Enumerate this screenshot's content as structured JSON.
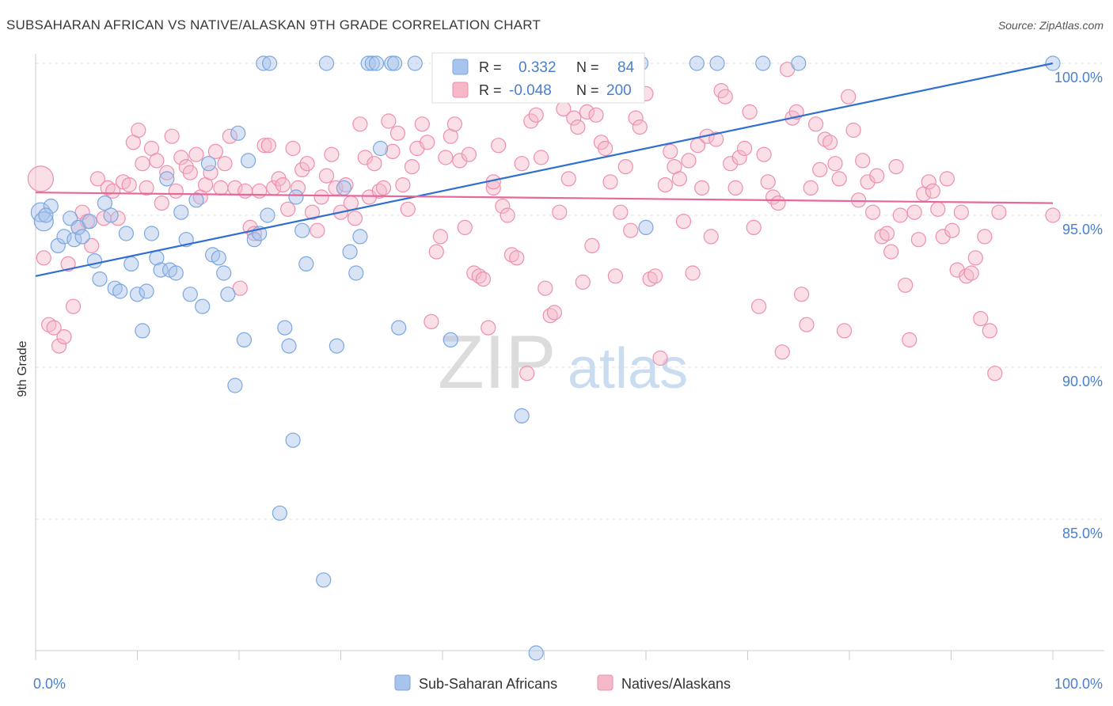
{
  "header": {
    "title": "SUBSAHARAN AFRICAN VS NATIVE/ALASKAN 9TH GRADE CORRELATION CHART",
    "source": "Source: ZipAtlas.com"
  },
  "watermark": {
    "part1": "ZIP",
    "part2": "atlas"
  },
  "legend_box": {
    "rows": [
      {
        "r_label": "R =",
        "r_value": "0.332",
        "n_label": "N =",
        "n_value": "84",
        "color": "#a8c4ec"
      },
      {
        "r_label": "R =",
        "r_value": "-0.048",
        "n_label": "N =",
        "n_value": "200",
        "color": "#f5b8c9"
      }
    ]
  },
  "chart_data": {
    "type": "scatter",
    "title": "SUBSAHARAN AFRICAN VS NATIVE/ALASKAN 9TH GRADE CORRELATION CHART",
    "xlabel": "",
    "ylabel": "9th Grade",
    "xlim": [
      0,
      100
    ],
    "ylim": [
      80.5,
      101.0
    ],
    "x_tick_labels": [
      "0.0%",
      "100.0%"
    ],
    "y_ticks": [
      {
        "value": 100.0,
        "label": "100.0%"
      },
      {
        "value": 95.0,
        "label": "95.0%"
      },
      {
        "value": 90.0,
        "label": "90.0%"
      },
      {
        "value": 85.0,
        "label": "85.0%"
      }
    ],
    "grid": true,
    "legend_position": "bottom-center",
    "series": [
      {
        "name": "Sub-Saharan Africans",
        "color": "#7aa7e0",
        "fill": "#a8c4ec",
        "R": 0.332,
        "N": 84,
        "trend": {
          "x": [
            0,
            100
          ],
          "y": [
            93.0,
            100.0
          ]
        },
        "points": [
          [
            0.5,
            95.1
          ],
          [
            0.8,
            94.8
          ],
          [
            1.5,
            95.3
          ],
          [
            2.2,
            94.0
          ],
          [
            2.8,
            94.3
          ],
          [
            3.4,
            94.9
          ],
          [
            3.8,
            94.2
          ],
          [
            4.2,
            94.6
          ],
          [
            4.6,
            94.3
          ],
          [
            5.3,
            94.8
          ],
          [
            5.8,
            93.5
          ],
          [
            6.3,
            92.9
          ],
          [
            6.8,
            95.4
          ],
          [
            7.4,
            95.0
          ],
          [
            7.8,
            92.6
          ],
          [
            8.3,
            92.5
          ],
          [
            8.9,
            94.4
          ],
          [
            9.4,
            93.4
          ],
          [
            10.0,
            92.4
          ],
          [
            10.5,
            91.2
          ],
          [
            10.9,
            92.5
          ],
          [
            11.4,
            94.4
          ],
          [
            11.9,
            93.6
          ],
          [
            12.3,
            93.2
          ],
          [
            12.9,
            96.2
          ],
          [
            13.2,
            93.2
          ],
          [
            13.8,
            93.1
          ],
          [
            14.3,
            95.1
          ],
          [
            14.8,
            94.2
          ],
          [
            15.2,
            92.4
          ],
          [
            15.8,
            95.5
          ],
          [
            16.4,
            92.0
          ],
          [
            17.0,
            96.7
          ],
          [
            17.4,
            93.7
          ],
          [
            18.0,
            93.6
          ],
          [
            18.5,
            93.1
          ],
          [
            18.9,
            92.4
          ],
          [
            19.6,
            89.4
          ],
          [
            19.9,
            97.7
          ],
          [
            20.5,
            90.9
          ],
          [
            20.9,
            96.8
          ],
          [
            21.5,
            94.2
          ],
          [
            22.0,
            94.4
          ],
          [
            22.4,
            100.0
          ],
          [
            22.8,
            95.0
          ],
          [
            23.0,
            100.0
          ],
          [
            24.0,
            85.2
          ],
          [
            24.5,
            91.3
          ],
          [
            24.9,
            90.7
          ],
          [
            25.3,
            87.6
          ],
          [
            25.6,
            95.6
          ],
          [
            26.2,
            94.5
          ],
          [
            26.6,
            93.4
          ],
          [
            28.3,
            83.0
          ],
          [
            28.6,
            100.0
          ],
          [
            29.6,
            90.7
          ],
          [
            30.3,
            95.9
          ],
          [
            30.9,
            93.8
          ],
          [
            31.5,
            93.1
          ],
          [
            31.9,
            94.3
          ],
          [
            32.7,
            100.0
          ],
          [
            33.1,
            100.0
          ],
          [
            33.5,
            100.0
          ],
          [
            33.9,
            97.2
          ],
          [
            35.0,
            100.0
          ],
          [
            35.3,
            100.0
          ],
          [
            35.7,
            91.3
          ],
          [
            37.3,
            100.0
          ],
          [
            40.5,
            100.0
          ],
          [
            40.8,
            90.9
          ],
          [
            44.0,
            100.0
          ],
          [
            47.0,
            100.0
          ],
          [
            47.8,
            88.4
          ],
          [
            49.2,
            80.6
          ],
          [
            59.0,
            100.0
          ],
          [
            59.5,
            100.0
          ],
          [
            60.0,
            94.6
          ],
          [
            65.0,
            100.0
          ],
          [
            67.0,
            100.0
          ],
          [
            71.5,
            100.0
          ],
          [
            75.0,
            100.0
          ],
          [
            100.0,
            100.0
          ],
          [
            1.0,
            95.0
          ]
        ]
      },
      {
        "name": "Natives/Alaskans",
        "color": "#ee8fad",
        "fill": "#f5b8c9",
        "R": -0.048,
        "N": 200,
        "trend": {
          "x": [
            0,
            100
          ],
          "y": [
            95.75,
            95.4
          ]
        },
        "points": [
          [
            0.5,
            96.2
          ],
          [
            0.8,
            93.6
          ],
          [
            1.3,
            91.4
          ],
          [
            1.8,
            91.3
          ],
          [
            2.3,
            90.7
          ],
          [
            2.8,
            91.0
          ],
          [
            3.2,
            93.4
          ],
          [
            3.7,
            92.0
          ],
          [
            4.2,
            94.6
          ],
          [
            4.6,
            95.1
          ],
          [
            5.1,
            94.8
          ],
          [
            5.5,
            94.0
          ],
          [
            6.1,
            96.2
          ],
          [
            6.7,
            94.9
          ],
          [
            7.1,
            95.9
          ],
          [
            7.6,
            95.8
          ],
          [
            8.1,
            94.9
          ],
          [
            8.6,
            96.1
          ],
          [
            9.2,
            96.0
          ],
          [
            9.6,
            97.4
          ],
          [
            10.1,
            97.8
          ],
          [
            10.5,
            96.7
          ],
          [
            10.9,
            95.9
          ],
          [
            11.4,
            97.2
          ],
          [
            11.9,
            96.8
          ],
          [
            12.4,
            95.4
          ],
          [
            12.9,
            96.4
          ],
          [
            13.4,
            97.6
          ],
          [
            13.8,
            95.8
          ],
          [
            14.3,
            96.9
          ],
          [
            14.8,
            96.6
          ],
          [
            15.2,
            96.4
          ],
          [
            15.8,
            97.0
          ],
          [
            16.2,
            95.6
          ],
          [
            16.7,
            96.0
          ],
          [
            17.2,
            96.4
          ],
          [
            17.7,
            97.1
          ],
          [
            18.2,
            95.9
          ],
          [
            18.6,
            96.7
          ],
          [
            19.1,
            97.6
          ],
          [
            19.6,
            95.9
          ],
          [
            20.1,
            92.6
          ],
          [
            20.6,
            95.8
          ],
          [
            21.1,
            94.6
          ],
          [
            21.5,
            94.4
          ],
          [
            22.0,
            95.8
          ],
          [
            22.5,
            97.3
          ],
          [
            22.9,
            97.3
          ],
          [
            23.4,
            95.9
          ],
          [
            23.9,
            96.2
          ],
          [
            24.3,
            96.0
          ],
          [
            24.8,
            95.2
          ],
          [
            25.3,
            97.2
          ],
          [
            25.8,
            95.9
          ],
          [
            26.2,
            96.5
          ],
          [
            26.7,
            96.7
          ],
          [
            27.2,
            95.1
          ],
          [
            27.7,
            94.5
          ],
          [
            28.1,
            95.6
          ],
          [
            28.6,
            96.3
          ],
          [
            29.1,
            97.0
          ],
          [
            29.5,
            95.9
          ],
          [
            30.0,
            95.1
          ],
          [
            30.5,
            96.0
          ],
          [
            31.0,
            95.4
          ],
          [
            31.4,
            94.9
          ],
          [
            31.9,
            98.0
          ],
          [
            32.4,
            96.9
          ],
          [
            32.8,
            95.6
          ],
          [
            33.3,
            96.7
          ],
          [
            33.8,
            95.8
          ],
          [
            34.2,
            95.9
          ],
          [
            34.7,
            98.1
          ],
          [
            35.1,
            97.1
          ],
          [
            35.6,
            97.7
          ],
          [
            36.1,
            96.0
          ],
          [
            36.6,
            95.2
          ],
          [
            37.0,
            96.6
          ],
          [
            37.5,
            97.2
          ],
          [
            38.0,
            98.0
          ],
          [
            38.5,
            97.4
          ],
          [
            38.9,
            91.5
          ],
          [
            39.4,
            93.8
          ],
          [
            39.8,
            94.3
          ],
          [
            40.3,
            96.9
          ],
          [
            40.8,
            97.6
          ],
          [
            41.2,
            98.0
          ],
          [
            41.7,
            96.8
          ],
          [
            42.2,
            94.6
          ],
          [
            42.6,
            97.0
          ],
          [
            43.1,
            93.1
          ],
          [
            43.6,
            93.0
          ],
          [
            44.0,
            92.9
          ],
          [
            44.5,
            91.3
          ],
          [
            45.0,
            95.9
          ],
          [
            45.5,
            97.3
          ],
          [
            45.9,
            95.3
          ],
          [
            46.4,
            95.0
          ],
          [
            46.8,
            93.7
          ],
          [
            47.3,
            93.6
          ],
          [
            47.8,
            96.7
          ],
          [
            48.3,
            89.8
          ],
          [
            48.7,
            98.1
          ],
          [
            49.2,
            98.3
          ],
          [
            49.7,
            96.9
          ],
          [
            50.1,
            92.6
          ],
          [
            50.6,
            91.7
          ],
          [
            51.0,
            91.8
          ],
          [
            51.5,
            95.1
          ],
          [
            51.9,
            98.5
          ],
          [
            52.4,
            96.2
          ],
          [
            52.9,
            98.2
          ],
          [
            53.3,
            97.9
          ],
          [
            53.8,
            92.8
          ],
          [
            54.2,
            98.4
          ],
          [
            54.7,
            94.0
          ],
          [
            55.1,
            98.3
          ],
          [
            55.6,
            97.4
          ],
          [
            56.0,
            97.2
          ],
          [
            56.5,
            96.1
          ],
          [
            57.0,
            93.0
          ],
          [
            57.5,
            95.1
          ],
          [
            58.0,
            96.6
          ],
          [
            58.5,
            94.5
          ],
          [
            59.0,
            98.2
          ],
          [
            59.4,
            97.9
          ],
          [
            60.0,
            99.0
          ],
          [
            60.4,
            92.9
          ],
          [
            60.9,
            93.0
          ],
          [
            61.4,
            90.3
          ],
          [
            61.9,
            96.0
          ],
          [
            62.4,
            97.1
          ],
          [
            62.8,
            96.6
          ],
          [
            63.3,
            96.2
          ],
          [
            63.7,
            94.8
          ],
          [
            64.2,
            96.8
          ],
          [
            64.6,
            93.1
          ],
          [
            65.1,
            97.3
          ],
          [
            65.5,
            95.9
          ],
          [
            66.0,
            97.6
          ],
          [
            66.4,
            94.3
          ],
          [
            66.9,
            97.5
          ],
          [
            67.4,
            99.1
          ],
          [
            67.8,
            98.9
          ],
          [
            68.3,
            96.7
          ],
          [
            68.8,
            95.9
          ],
          [
            69.2,
            96.9
          ],
          [
            69.7,
            97.2
          ],
          [
            70.2,
            98.4
          ],
          [
            70.6,
            94.6
          ],
          [
            71.1,
            92.0
          ],
          [
            71.6,
            97.0
          ],
          [
            72.0,
            96.1
          ],
          [
            72.5,
            95.6
          ],
          [
            73.0,
            95.4
          ],
          [
            73.4,
            90.5
          ],
          [
            73.9,
            99.8
          ],
          [
            74.4,
            98.2
          ],
          [
            74.8,
            98.4
          ],
          [
            75.3,
            92.4
          ],
          [
            75.8,
            91.4
          ],
          [
            76.2,
            95.9
          ],
          [
            76.7,
            98.0
          ],
          [
            77.1,
            96.5
          ],
          [
            77.6,
            97.5
          ],
          [
            78.1,
            97.4
          ],
          [
            78.6,
            96.7
          ],
          [
            79.0,
            96.2
          ],
          [
            79.5,
            91.2
          ],
          [
            79.9,
            98.9
          ],
          [
            80.4,
            97.8
          ],
          [
            80.9,
            95.5
          ],
          [
            81.3,
            96.8
          ],
          [
            81.8,
            96.1
          ],
          [
            82.3,
            95.1
          ],
          [
            82.7,
            96.3
          ],
          [
            83.2,
            94.3
          ],
          [
            83.7,
            94.4
          ],
          [
            84.1,
            93.8
          ],
          [
            84.6,
            96.6
          ],
          [
            85.0,
            95.0
          ],
          [
            85.5,
            92.7
          ],
          [
            85.9,
            90.9
          ],
          [
            86.4,
            95.1
          ],
          [
            86.8,
            94.2
          ],
          [
            87.3,
            95.7
          ],
          [
            87.8,
            96.1
          ],
          [
            88.2,
            95.8
          ],
          [
            88.7,
            95.2
          ],
          [
            89.2,
            94.3
          ],
          [
            89.6,
            96.2
          ],
          [
            90.1,
            94.5
          ],
          [
            90.6,
            93.2
          ],
          [
            91.0,
            95.1
          ],
          [
            91.5,
            93.0
          ],
          [
            92.0,
            93.1
          ],
          [
            92.4,
            93.6
          ],
          [
            92.9,
            91.6
          ],
          [
            93.3,
            94.3
          ],
          [
            93.8,
            91.2
          ],
          [
            94.3,
            89.8
          ],
          [
            94.7,
            95.1
          ],
          [
            45.0,
            96.1
          ],
          [
            55.5,
            99.0
          ],
          [
            100.0,
            95.0
          ]
        ]
      }
    ]
  },
  "bottom_legend": {
    "items": [
      {
        "label": "Sub-Saharan Africans",
        "color": "#a8c4ec"
      },
      {
        "label": "Natives/Alaskans",
        "color": "#f5b8c9"
      }
    ]
  }
}
